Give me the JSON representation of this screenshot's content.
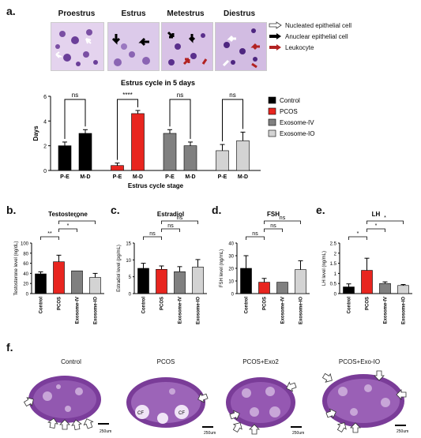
{
  "panels": {
    "a": "a.",
    "b": "b.",
    "c": "c.",
    "d": "d.",
    "e": "e.",
    "f": "f."
  },
  "stages": [
    "Proestrus",
    "Estrus",
    "Metestrus",
    "Diestrus"
  ],
  "cell_legend": [
    {
      "label": "Nucleated epithelial cell",
      "arrow_color": "#ffffff"
    },
    {
      "label": "Anuclear epithelial cell",
      "arrow_color": "#000000"
    },
    {
      "label": "Leukocyte",
      "arrow_color": "#b22222"
    }
  ],
  "histology_labels": [
    "Control",
    "PCOS",
    "PCOS+Exo2",
    "PCOS+Exo-IO"
  ],
  "scale_bar": "250um",
  "colors": {
    "Control": "#000000",
    "PCOS": "#e8251f",
    "Exosome-IV": "#808080",
    "Exosome-IO": "#d3d3d3"
  },
  "chart_data": [
    {
      "type": "bar",
      "title": "Estrus cycle in 5 days",
      "ylabel": "Days",
      "xlabel": "Estrus cycle stage",
      "ylim": [
        0,
        6
      ],
      "yticks": [
        0,
        2,
        4,
        6
      ],
      "groups": [
        "Control",
        "PCOS",
        "Exosome-IV",
        "Exosome-IO"
      ],
      "categories": [
        "P-E",
        "M-D"
      ],
      "series": [
        {
          "name": "Control",
          "values": [
            2.0,
            3.0
          ],
          "errors": [
            0.3,
            0.3
          ]
        },
        {
          "name": "PCOS",
          "values": [
            0.4,
            4.6
          ],
          "errors": [
            0.2,
            0.25
          ]
        },
        {
          "name": "Exosome-IV",
          "values": [
            3.0,
            2.0
          ],
          "errors": [
            0.3,
            0.3
          ]
        },
        {
          "name": "Exosome-IO",
          "values": [
            1.6,
            2.4
          ],
          "errors": [
            0.5,
            0.7
          ]
        }
      ],
      "significance": [
        "ns",
        "****",
        "ns",
        "ns"
      ],
      "legend": [
        "Control",
        "PCOS",
        "Exosome-IV",
        "Exosome-IO"
      ]
    },
    {
      "type": "bar",
      "title": "Testosterone",
      "ylabel": "Testosterone level (ng/dL)",
      "ylim": [
        0,
        100
      ],
      "yticks": [
        0,
        20,
        40,
        60,
        80,
        100
      ],
      "categories": [
        "Control",
        "PCOS",
        "Exosome-IV",
        "Exosome-IO"
      ],
      "values": [
        39,
        63,
        45,
        32
      ],
      "errors": [
        4,
        13,
        0,
        8
      ],
      "brackets": [
        {
          "from": 0,
          "to": 1,
          "label": "**"
        },
        {
          "from": 1,
          "to": 2,
          "label": "*"
        },
        {
          "from": 1,
          "to": 3,
          "label": "**"
        }
      ]
    },
    {
      "type": "bar",
      "title": "Estradiol",
      "ylabel": "Estradiol level (pg/mL)",
      "ylim": [
        0,
        15
      ],
      "yticks": [
        0,
        5,
        10,
        15
      ],
      "categories": [
        "Control",
        "PCOS",
        "Exosome-IV",
        "Exosome-IO"
      ],
      "values": [
        7.5,
        7.2,
        6.5,
        7.9
      ],
      "errors": [
        1.5,
        1.0,
        1.5,
        2.2
      ],
      "brackets": [
        {
          "from": 0,
          "to": 1,
          "label": "ns"
        },
        {
          "from": 1,
          "to": 2,
          "label": "ns"
        },
        {
          "from": 1,
          "to": 3,
          "label": "ns"
        }
      ]
    },
    {
      "type": "bar",
      "title": "FSH",
      "ylabel": "FSH level (ng/mL)",
      "ylim": [
        0,
        40
      ],
      "yticks": [
        0,
        10,
        20,
        30,
        40
      ],
      "categories": [
        "Control",
        "PCOS",
        "Exosome-IV",
        "Exosome-IO"
      ],
      "values": [
        20,
        9,
        9,
        19
      ],
      "errors": [
        10,
        3,
        0,
        7
      ],
      "brackets": [
        {
          "from": 0,
          "to": 1,
          "label": "ns"
        },
        {
          "from": 1,
          "to": 2,
          "label": "ns"
        },
        {
          "from": 1,
          "to": 3,
          "label": "ns"
        }
      ]
    },
    {
      "type": "bar",
      "title": "LH",
      "ylabel": "LH level (ng/mL)",
      "ylim": [
        0,
        2.5
      ],
      "yticks": [
        0.0,
        0.5,
        1.0,
        1.5,
        2.0,
        2.5
      ],
      "categories": [
        "Control",
        "PCOS",
        "Exosome-IV",
        "Exosome-IO"
      ],
      "values": [
        0.33,
        1.15,
        0.5,
        0.4
      ],
      "errors": [
        0.15,
        0.6,
        0.08,
        0.05
      ],
      "brackets": [
        {
          "from": 0,
          "to": 1,
          "label": "*"
        },
        {
          "from": 1,
          "to": 2,
          "label": "*"
        },
        {
          "from": 1,
          "to": 3,
          "label": "*"
        }
      ]
    }
  ]
}
